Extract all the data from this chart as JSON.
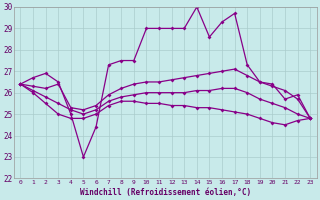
{
  "title": "",
  "xlabel": "Windchill (Refroidissement éolien,°C)",
  "ylabel": "",
  "bg_color": "#c8eaea",
  "grid_color": "#b0d8d8",
  "line_color": "#880088",
  "xlim": [
    -0.5,
    23.5
  ],
  "ylim": [
    22,
    30
  ],
  "xticks": [
    0,
    1,
    2,
    3,
    4,
    5,
    6,
    7,
    8,
    9,
    10,
    11,
    12,
    13,
    14,
    15,
    16,
    17,
    18,
    19,
    20,
    21,
    22,
    23
  ],
  "yticks": [
    22,
    23,
    24,
    25,
    26,
    27,
    28,
    29,
    30
  ],
  "series": [
    [
      26.4,
      26.7,
      26.9,
      26.5,
      25.0,
      23.0,
      24.4,
      27.3,
      27.5,
      27.5,
      29.0,
      29.0,
      29.0,
      29.0,
      30.0,
      28.6,
      29.3,
      29.7,
      27.3,
      26.5,
      26.4,
      25.7,
      25.9,
      24.8
    ],
    [
      26.4,
      26.3,
      26.2,
      26.4,
      25.3,
      25.2,
      25.4,
      25.9,
      26.2,
      26.4,
      26.5,
      26.5,
      26.6,
      26.7,
      26.8,
      26.9,
      27.0,
      27.1,
      26.8,
      26.5,
      26.3,
      26.1,
      25.7,
      24.8
    ],
    [
      26.4,
      26.1,
      25.8,
      25.5,
      25.2,
      25.0,
      25.2,
      25.6,
      25.8,
      25.9,
      26.0,
      26.0,
      26.0,
      26.0,
      26.1,
      26.1,
      26.2,
      26.2,
      26.0,
      25.7,
      25.5,
      25.3,
      25.0,
      24.8
    ],
    [
      26.4,
      26.0,
      25.5,
      25.0,
      24.8,
      24.8,
      25.0,
      25.4,
      25.6,
      25.6,
      25.5,
      25.5,
      25.4,
      25.4,
      25.3,
      25.3,
      25.2,
      25.1,
      25.0,
      24.8,
      24.6,
      24.5,
      24.7,
      24.8
    ]
  ]
}
